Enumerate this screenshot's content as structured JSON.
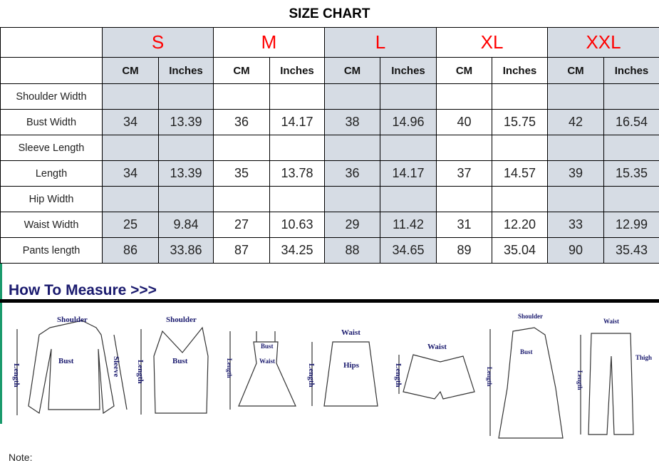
{
  "title": "SIZE CHART",
  "sizes": [
    "S",
    "M",
    "L",
    "XL",
    "XXL"
  ],
  "units": [
    "CM",
    "Inches"
  ],
  "rows": [
    {
      "label": "Shoulder Width",
      "values": [
        "",
        "",
        "",
        "",
        "",
        "",
        "",
        "",
        "",
        ""
      ]
    },
    {
      "label": "Bust Width",
      "values": [
        "34",
        "13.39",
        "36",
        "14.17",
        "38",
        "14.96",
        "40",
        "15.75",
        "42",
        "16.54"
      ]
    },
    {
      "label": "Sleeve Length",
      "values": [
        "",
        "",
        "",
        "",
        "",
        "",
        "",
        "",
        "",
        ""
      ]
    },
    {
      "label": "Length",
      "values": [
        "34",
        "13.39",
        "35",
        "13.78",
        "36",
        "14.17",
        "37",
        "14.57",
        "39",
        "15.35"
      ]
    },
    {
      "label": "Hip Width",
      "values": [
        "",
        "",
        "",
        "",
        "",
        "",
        "",
        "",
        "",
        ""
      ]
    },
    {
      "label": "Waist Width",
      "values": [
        "25",
        "9.84",
        "27",
        "10.63",
        "29",
        "11.42",
        "31",
        "12.20",
        "33",
        "12.99"
      ]
    },
    {
      "label": "Pants length",
      "values": [
        "86",
        "33.86",
        "87",
        "34.25",
        "88",
        "34.65",
        "89",
        "35.04",
        "90",
        "35.43"
      ]
    }
  ],
  "colors": {
    "size_text": "#ff0000",
    "shaded": "#d6dce4",
    "heading": "#1a1a6e"
  },
  "measure": {
    "heading": "How To Measure >>>",
    "labels": {
      "shoulder": "Shoulder",
      "bust": "Bust",
      "sleeve": "Sleeve",
      "length": "Length",
      "waist": "Waist",
      "hips": "Hips",
      "thigh": "Thigh"
    }
  },
  "note": "Note:"
}
